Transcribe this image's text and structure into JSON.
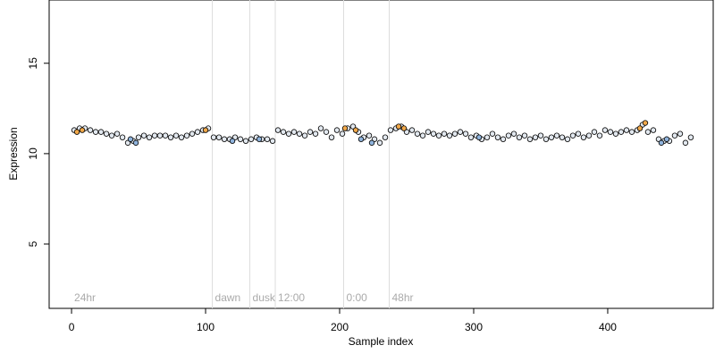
{
  "chart_data": {
    "type": "scatter",
    "x_label": "Sample index",
    "y_label": "Expression",
    "xlim": [
      -16.7,
      478.7
    ],
    "ylim": [
      1.44,
      18.5
    ],
    "xticks": [
      0,
      100,
      200,
      300,
      400
    ],
    "yticks": [
      5,
      10,
      15
    ],
    "markers": [
      {
        "x": 0,
        "label": "24hr",
        "line": false
      },
      {
        "x": 105,
        "label": "dawn",
        "line": true
      },
      {
        "x": 133,
        "label": "dusk",
        "line": true
      },
      {
        "x": 152,
        "label": "12:00",
        "line": true
      },
      {
        "x": 203,
        "label": "0:00",
        "line": true
      },
      {
        "x": 237,
        "label": "48hr",
        "line": true
      }
    ],
    "series": [
      {
        "color": "#e2e8ef",
        "x": [
          2,
          6,
          10,
          14,
          18,
          22,
          26,
          30,
          34,
          38,
          42,
          46,
          50,
          54,
          58,
          62,
          66,
          70,
          74,
          78,
          82,
          86,
          90,
          94,
          98,
          102,
          106,
          110,
          114,
          118,
          122,
          126,
          130,
          134,
          138,
          142,
          146,
          150,
          154,
          158,
          162,
          166,
          170,
          174,
          178,
          182,
          186,
          190,
          194,
          198,
          202,
          206,
          210,
          214,
          218,
          222,
          226,
          230,
          234,
          238,
          242,
          246,
          250,
          254,
          258,
          262,
          266,
          270,
          274,
          278,
          282,
          286,
          290,
          294,
          298,
          302,
          306,
          310,
          314,
          318,
          322,
          326,
          330,
          334,
          338,
          342,
          346,
          350,
          354,
          358,
          362,
          366,
          370,
          374,
          378,
          382,
          386,
          390,
          394,
          398,
          402,
          406,
          410,
          414,
          418,
          422,
          426,
          430,
          434,
          438,
          442,
          446,
          450,
          454,
          458,
          462
        ],
        "values": [
          11.3,
          11.4,
          11.4,
          11.3,
          11.2,
          11.2,
          11.1,
          11.0,
          11.1,
          10.9,
          10.6,
          10.7,
          10.9,
          11.0,
          10.9,
          11.0,
          11.0,
          11.0,
          10.9,
          11.0,
          10.9,
          11.0,
          11.1,
          11.2,
          11.3,
          11.4,
          10.9,
          10.9,
          10.8,
          10.8,
          10.9,
          10.8,
          10.7,
          10.8,
          10.9,
          10.8,
          10.8,
          10.7,
          11.3,
          11.2,
          11.1,
          11.2,
          11.1,
          11.0,
          11.2,
          11.1,
          11.4,
          11.2,
          10.9,
          11.3,
          11.1,
          11.4,
          11.5,
          11.2,
          10.9,
          11.0,
          10.8,
          10.6,
          10.9,
          11.3,
          11.4,
          11.5,
          11.2,
          11.3,
          11.1,
          11.0,
          11.2,
          11.1,
          11.0,
          11.1,
          11.0,
          11.1,
          11.2,
          11.1,
          10.9,
          11.0,
          10.8,
          10.9,
          11.1,
          10.9,
          10.8,
          11.0,
          11.1,
          10.9,
          11.0,
          10.8,
          10.9,
          11.0,
          10.8,
          10.9,
          11.0,
          10.9,
          10.8,
          11.0,
          11.1,
          10.9,
          11.0,
          11.2,
          11.0,
          11.3,
          11.2,
          11.1,
          11.2,
          11.3,
          11.2,
          11.3,
          11.6,
          11.2,
          11.3,
          10.8,
          10.7,
          10.7,
          11.0,
          11.1,
          10.6,
          10.9
        ]
      },
      {
        "color": "#f0a84a",
        "x": [
          4,
          8,
          100,
          204,
          212,
          244,
          248,
          424,
          428
        ],
        "values": [
          11.2,
          11.3,
          11.3,
          11.4,
          11.3,
          11.5,
          11.4,
          11.4,
          11.7
        ]
      },
      {
        "color": "#8fb3dc",
        "x": [
          44,
          48,
          120,
          140,
          216,
          224,
          304,
          440,
          444
        ],
        "values": [
          10.8,
          10.6,
          10.7,
          10.8,
          10.8,
          10.6,
          10.9,
          10.6,
          10.8
        ]
      }
    ]
  }
}
